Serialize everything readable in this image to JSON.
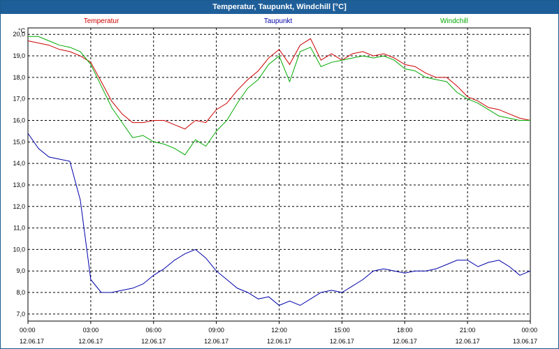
{
  "window": {
    "title": "Temperatur, Taupunkt, Windchill [°C]"
  },
  "chart_data": {
    "type": "line",
    "ylabel": "°C",
    "ylim": [
      6.67,
      20.3
    ],
    "xlim": [
      0,
      24
    ],
    "y_ticks": [
      "7,0",
      "8,0",
      "9,0",
      "10,0",
      "11,0",
      "12,0",
      "13,0",
      "14,0",
      "15,0",
      "16,0",
      "17,0",
      "18,0",
      "19,0",
      "20,0"
    ],
    "x_ticks": [
      {
        "time": "00:00",
        "date": "12.06.17"
      },
      {
        "time": "03:00",
        "date": "12.06.17"
      },
      {
        "time": "06:00",
        "date": "12.06.17"
      },
      {
        "time": "09:00",
        "date": "12.06.17"
      },
      {
        "time": "12:00",
        "date": "12.06.17"
      },
      {
        "time": "15:00",
        "date": "12.06.17"
      },
      {
        "time": "18:00",
        "date": "12.06.17"
      },
      {
        "time": "21:00",
        "date": "12.06.17"
      },
      {
        "time": "00:00",
        "date": "13.06.17"
      }
    ],
    "grid": true,
    "legend_position": "top",
    "series": [
      {
        "name": "Temperatur",
        "color": "#cc0000",
        "x": [
          0,
          0.5,
          1,
          1.5,
          2,
          2.5,
          3,
          3.5,
          4,
          4.5,
          5,
          5.5,
          6,
          6.5,
          7,
          7.5,
          8,
          8.5,
          9,
          9.5,
          10,
          10.5,
          11,
          11.5,
          12,
          12.5,
          13,
          13.5,
          14,
          14.5,
          15,
          15.5,
          16,
          16.5,
          17,
          17.5,
          18,
          18.5,
          19,
          19.5,
          20,
          20.5,
          21,
          21.5,
          22,
          22.5,
          23,
          23.5,
          24
        ],
        "values": [
          19.7,
          19.6,
          19.5,
          19.3,
          19.2,
          19.0,
          18.7,
          17.8,
          16.9,
          16.3,
          15.9,
          15.9,
          16.0,
          16.0,
          15.8,
          15.6,
          16.0,
          15.9,
          16.5,
          16.8,
          17.4,
          17.9,
          18.3,
          18.9,
          19.3,
          18.6,
          19.5,
          19.8,
          18.8,
          19.1,
          18.8,
          19.1,
          19.2,
          19.0,
          19.1,
          18.9,
          18.6,
          18.5,
          18.2,
          18.0,
          18.0,
          17.6,
          17.1,
          16.9,
          16.6,
          16.5,
          16.3,
          16.1,
          16.0
        ]
      },
      {
        "name": "Taupunkt",
        "color": "#0000aa",
        "x": [
          0,
          0.5,
          1,
          1.5,
          2,
          2.5,
          3,
          3.5,
          4,
          4.5,
          5,
          5.5,
          6,
          6.5,
          7,
          7.5,
          8,
          8.5,
          9,
          9.5,
          10,
          10.5,
          11,
          11.5,
          12,
          12.5,
          13,
          13.5,
          14,
          14.5,
          15,
          15.5,
          16,
          16.5,
          17,
          17.5,
          18,
          18.5,
          19,
          19.5,
          20,
          20.5,
          21,
          21.5,
          22,
          22.5,
          23,
          23.5,
          24
        ],
        "values": [
          15.4,
          14.7,
          14.3,
          14.2,
          14.1,
          12.3,
          8.6,
          8.0,
          8.0,
          8.1,
          8.2,
          8.4,
          8.8,
          9.1,
          9.5,
          9.8,
          10.0,
          9.6,
          9.0,
          8.6,
          8.2,
          8.0,
          7.7,
          7.8,
          7.4,
          7.6,
          7.4,
          7.7,
          8.0,
          8.1,
          8.0,
          8.3,
          8.6,
          9.0,
          9.1,
          9.0,
          8.9,
          9.0,
          9.0,
          9.1,
          9.3,
          9.5,
          9.5,
          9.2,
          9.4,
          9.5,
          9.2,
          8.8,
          9.0
        ]
      },
      {
        "name": "Windchill",
        "color": "#00aa00",
        "x": [
          0,
          0.5,
          1,
          1.5,
          2,
          2.5,
          3,
          3.5,
          4,
          4.5,
          5,
          5.5,
          6,
          6.5,
          7,
          7.5,
          8,
          8.5,
          9,
          9.5,
          10,
          10.5,
          11,
          11.5,
          12,
          12.5,
          13,
          13.5,
          14,
          14.5,
          15,
          15.5,
          16,
          16.5,
          17,
          17.5,
          18,
          18.5,
          19,
          19.5,
          20,
          20.5,
          21,
          21.5,
          22,
          22.5,
          23,
          23.5,
          24
        ],
        "values": [
          19.9,
          19.9,
          19.7,
          19.5,
          19.4,
          19.2,
          18.6,
          17.6,
          16.6,
          15.9,
          15.2,
          15.3,
          15.0,
          14.9,
          14.7,
          14.4,
          15.1,
          14.8,
          15.5,
          16.0,
          16.8,
          17.5,
          17.9,
          18.6,
          19.0,
          17.8,
          19.2,
          19.4,
          18.5,
          18.7,
          18.8,
          18.9,
          19.0,
          18.9,
          19.0,
          18.8,
          18.4,
          18.3,
          18.0,
          17.9,
          17.8,
          17.3,
          17.0,
          16.8,
          16.5,
          16.2,
          16.1,
          16.0,
          16.0
        ]
      }
    ]
  }
}
